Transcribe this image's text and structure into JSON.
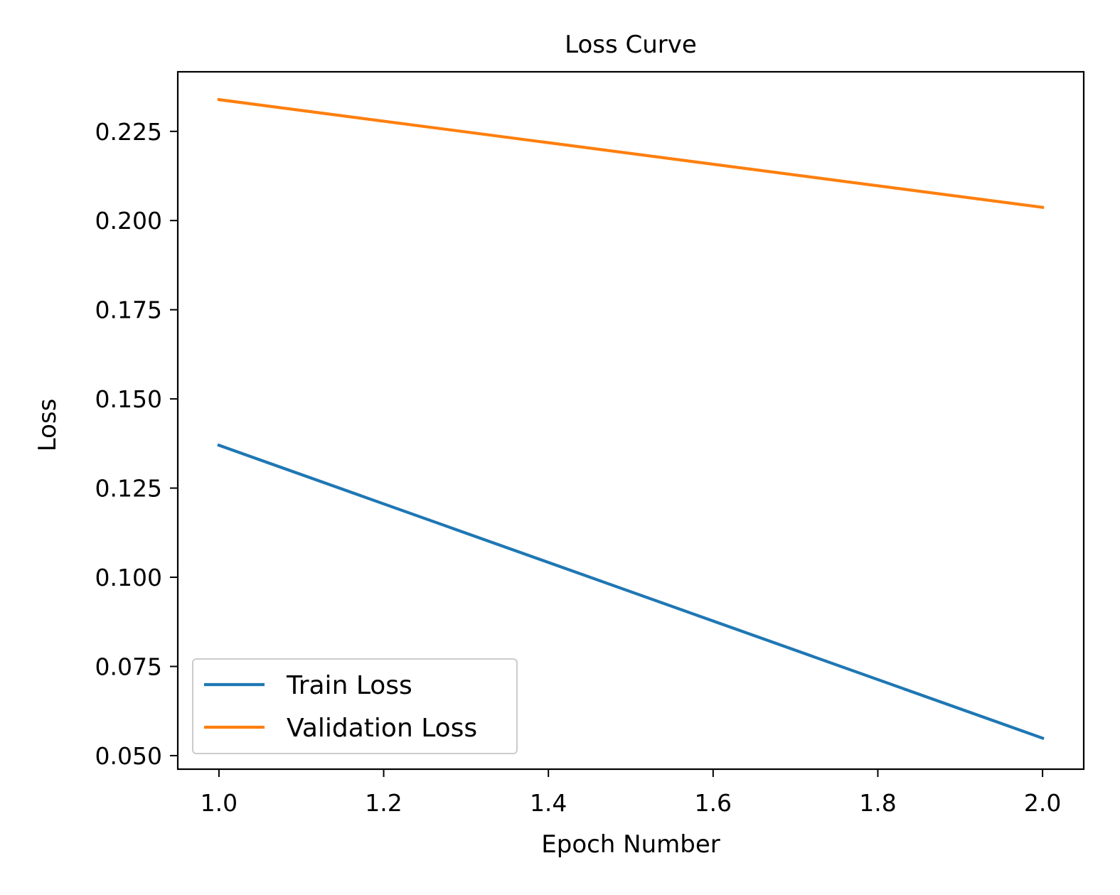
{
  "chart_data": {
    "type": "line",
    "title": "Loss Curve",
    "xlabel": "Epoch Number",
    "ylabel": "Loss",
    "xlim": [
      0.95,
      2.05
    ],
    "ylim": [
      0.0462,
      0.2417
    ],
    "x_ticks": [
      1.0,
      1.2,
      1.4,
      1.6,
      1.8,
      2.0
    ],
    "x_tick_labels": [
      "1.0",
      "1.2",
      "1.4",
      "1.6",
      "1.8",
      "2.0"
    ],
    "y_ticks": [
      0.05,
      0.075,
      0.1,
      0.125,
      0.15,
      0.175,
      0.2,
      0.225
    ],
    "y_tick_labels": [
      "0.050",
      "0.075",
      "0.100",
      "0.125",
      "0.150",
      "0.175",
      "0.200",
      "0.225"
    ],
    "grid": false,
    "legend_position": "lower-left",
    "x": [
      1,
      2
    ],
    "series": [
      {
        "name": "Train Loss",
        "values": [
          0.137,
          0.0549
        ],
        "color": "#1f77b4"
      },
      {
        "name": "Validation Loss",
        "values": [
          0.2339,
          0.2037
        ],
        "color": "#ff7f0e"
      }
    ]
  }
}
